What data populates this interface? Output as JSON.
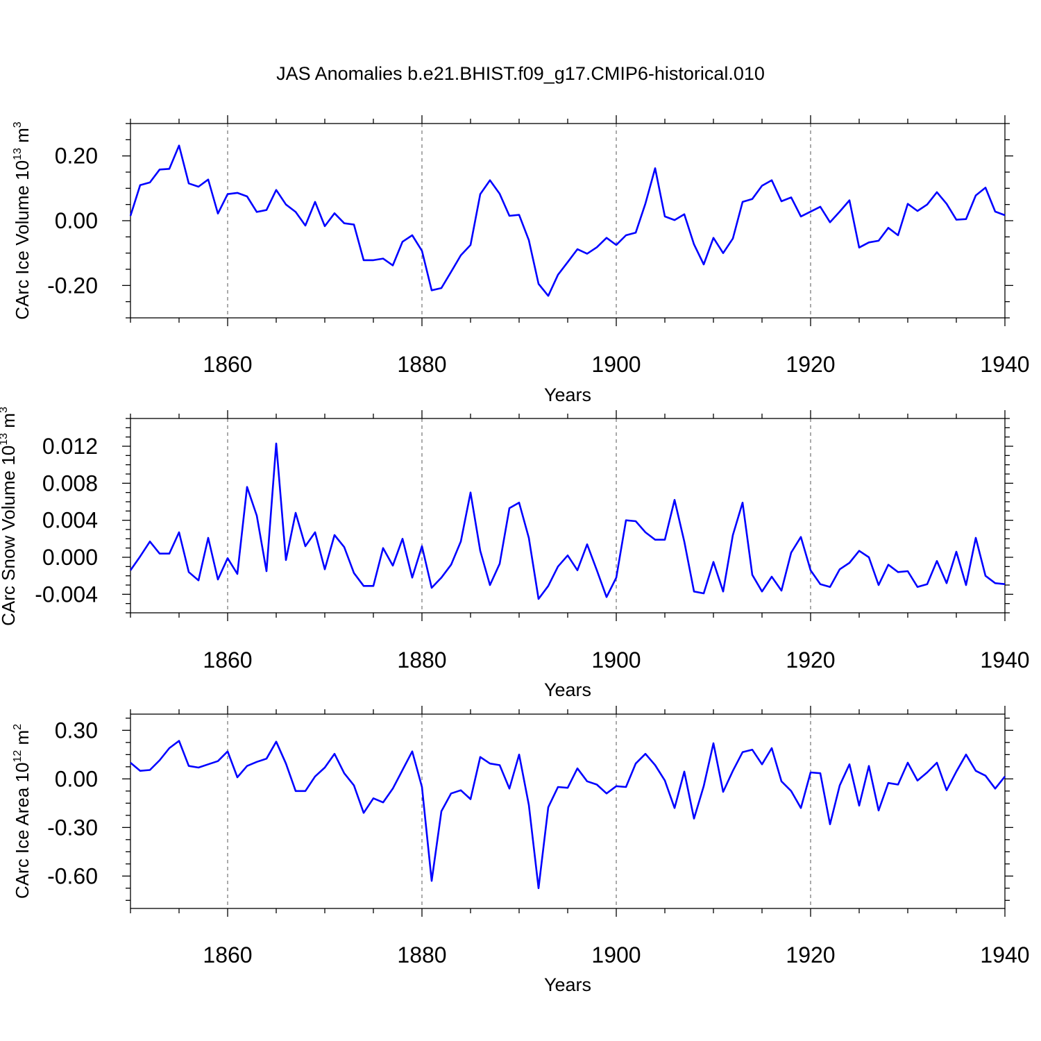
{
  "title": "JAS Anomalies b.e21.BHIST.f09_g17.CMIP6-historical.010",
  "colors": {
    "series": "#0000ff",
    "frame": "#000000",
    "grid": "#555555"
  },
  "chart_data": [
    {
      "type": "line",
      "ylabel": {
        "main": "CArc Ice Volume 10",
        "sup": "13",
        "unit": " m",
        "unit_sup": "3"
      },
      "xlabel": "Years",
      "xlim": [
        1850,
        1940
      ],
      "ylim": [
        -0.3,
        0.3
      ],
      "yticks": [
        -0.2,
        0.0,
        0.2
      ],
      "ytick_labels": [
        "-0.20",
        "0.00",
        "0.20"
      ],
      "xticks": [
        1860,
        1880,
        1900,
        1920,
        1940
      ],
      "xtick_labels": [
        "1860",
        "1880",
        "1900",
        "1920",
        "1940"
      ],
      "grid": "vertical dashed at major x ticks",
      "x_start": 1850,
      "values": [
        0.015,
        0.11,
        0.118,
        0.158,
        0.16,
        0.232,
        0.115,
        0.105,
        0.127,
        0.022,
        0.082,
        0.086,
        0.075,
        0.027,
        0.033,
        0.095,
        0.05,
        0.027,
        -0.015,
        0.058,
        -0.017,
        0.023,
        -0.008,
        -0.012,
        -0.122,
        -0.122,
        -0.117,
        -0.138,
        -0.065,
        -0.045,
        -0.093,
        -0.215,
        -0.208,
        -0.158,
        -0.107,
        -0.075,
        0.082,
        0.125,
        0.083,
        0.015,
        0.018,
        -0.06,
        -0.195,
        -0.232,
        -0.167,
        -0.128,
        -0.088,
        -0.102,
        -0.082,
        -0.053,
        -0.075,
        -0.045,
        -0.037,
        0.053,
        0.162,
        0.013,
        0.002,
        0.02,
        -0.073,
        -0.135,
        -0.053,
        -0.1,
        -0.055,
        0.058,
        0.067,
        0.108,
        0.125,
        0.06,
        0.072,
        0.013,
        0.028,
        0.043,
        -0.005,
        0.028,
        0.063,
        -0.083,
        -0.067,
        -0.062,
        -0.022,
        -0.045,
        0.052,
        0.03,
        0.05,
        0.088,
        0.052,
        0.003,
        0.005,
        0.078,
        0.102,
        0.028,
        0.017
      ]
    },
    {
      "type": "line",
      "ylabel": {
        "main": "CArc Snow Volume 10",
        "sup": "13",
        "unit": " m",
        "unit_sup": "3"
      },
      "xlabel": "Years",
      "xlim": [
        1850,
        1940
      ],
      "ylim": [
        -0.006,
        0.015
      ],
      "yticks": [
        -0.004,
        0.0,
        0.004,
        0.008,
        0.012
      ],
      "ytick_labels": [
        "-0.004",
        "0.000",
        "0.004",
        "0.008",
        "0.012"
      ],
      "xticks": [
        1860,
        1880,
        1900,
        1920,
        1940
      ],
      "xtick_labels": [
        "1860",
        "1880",
        "1900",
        "1920",
        "1940"
      ],
      "grid": "vertical dashed at major x ticks",
      "x_start": 1850,
      "values": [
        -0.0014,
        0.0001,
        0.0017,
        0.0004,
        0.0004,
        0.0027,
        -0.0016,
        -0.0025,
        0.0021,
        -0.0024,
        -0.0001,
        -0.0018,
        0.0076,
        0.0045,
        -0.0015,
        0.0123,
        -0.0003,
        0.0048,
        0.0012,
        0.0027,
        -0.0013,
        0.0024,
        0.0011,
        -0.0017,
        -0.0031,
        -0.0031,
        0.001,
        -0.0009,
        0.002,
        -0.0022,
        0.0012,
        -0.0033,
        -0.0022,
        -0.0008,
        0.0017,
        0.007,
        0.0007,
        -0.003,
        -0.0007,
        0.0053,
        0.0059,
        0.0021,
        -0.0045,
        -0.0031,
        -0.001,
        0.0002,
        -0.0014,
        0.0014,
        -0.0014,
        -0.0043,
        -0.0022,
        0.004,
        0.0039,
        0.0027,
        0.0019,
        0.0019,
        0.0062,
        0.0017,
        -0.0037,
        -0.0039,
        -0.0005,
        -0.0037,
        0.0024,
        0.0059,
        -0.0019,
        -0.0037,
        -0.0021,
        -0.0036,
        0.0005,
        0.0022,
        -0.0014,
        -0.0029,
        -0.0032,
        -0.0013,
        -0.0006,
        0.0007,
        0.0,
        -0.003,
        -0.0008,
        -0.0016,
        -0.0015,
        -0.0032,
        -0.0029,
        -0.0004,
        -0.0028,
        0.0006,
        -0.003,
        0.0021,
        -0.002,
        -0.0028,
        -0.0029
      ]
    },
    {
      "type": "line",
      "ylabel": {
        "main": "CArc Ice Area 10",
        "sup": "12",
        "unit": " m",
        "unit_sup": "2"
      },
      "xlabel": "Years",
      "xlim": [
        1850,
        1940
      ],
      "ylim": [
        -0.8,
        0.4
      ],
      "yticks": [
        -0.6,
        -0.3,
        0.0,
        0.3
      ],
      "ytick_labels": [
        "-0.60",
        "-0.30",
        "0.00",
        "0.30"
      ],
      "xticks": [
        1860,
        1880,
        1900,
        1920,
        1940
      ],
      "xtick_labels": [
        "1860",
        "1880",
        "1900",
        "1920",
        "1940"
      ],
      "grid": "vertical dashed at major x ticks",
      "x_start": 1850,
      "values": [
        0.1,
        0.05,
        0.055,
        0.115,
        0.19,
        0.235,
        0.08,
        0.07,
        0.09,
        0.11,
        0.17,
        0.01,
        0.08,
        0.105,
        0.125,
        0.23,
        0.095,
        -0.075,
        -0.075,
        0.015,
        0.07,
        0.155,
        0.035,
        -0.04,
        -0.21,
        -0.12,
        -0.145,
        -0.06,
        0.055,
        0.17,
        -0.05,
        -0.63,
        -0.2,
        -0.09,
        -0.07,
        -0.125,
        0.135,
        0.095,
        0.085,
        -0.06,
        0.15,
        -0.16,
        -0.675,
        -0.175,
        -0.05,
        -0.055,
        0.065,
        -0.015,
        -0.035,
        -0.09,
        -0.045,
        -0.05,
        0.095,
        0.155,
        0.085,
        -0.01,
        -0.18,
        0.045,
        -0.245,
        -0.045,
        0.22,
        -0.08,
        0.05,
        0.165,
        0.18,
        0.09,
        0.19,
        -0.015,
        -0.075,
        -0.18,
        0.04,
        0.035,
        -0.28,
        -0.04,
        0.09,
        -0.165,
        0.08,
        -0.195,
        -0.025,
        -0.035,
        0.1,
        -0.01,
        0.04,
        0.1,
        -0.07,
        0.045,
        0.15,
        0.05,
        0.02,
        -0.06,
        0.015
      ]
    }
  ]
}
